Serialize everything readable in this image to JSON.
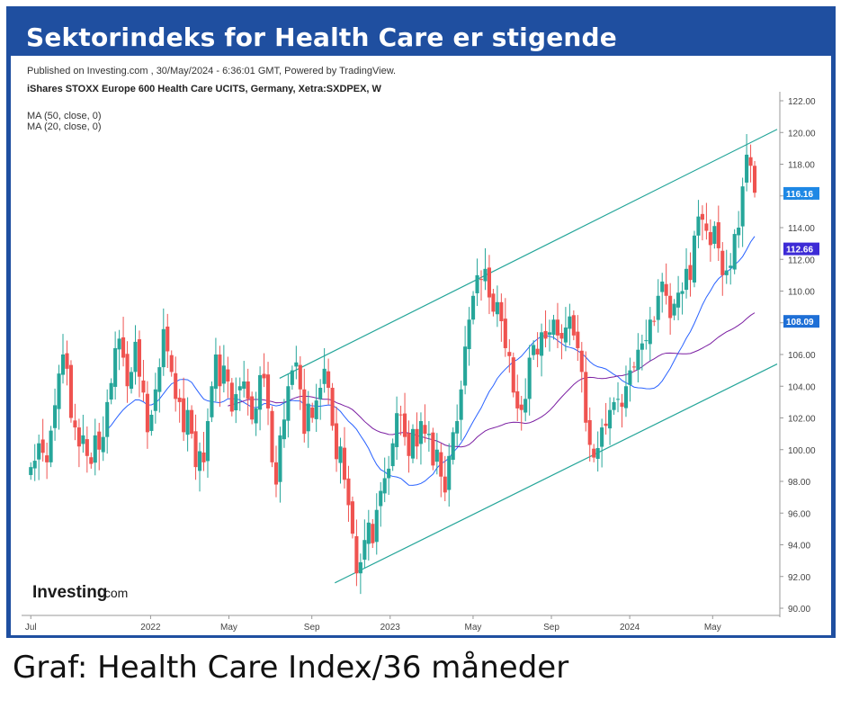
{
  "headline": "Sektorindeks for Health Care er stigende",
  "caption": "Graf: Health Care Index/36 måneder",
  "colors": {
    "frame": "#1f4fa0",
    "up": "#26a69a",
    "down": "#ef5350",
    "channel": "#26a69a",
    "ma20": "#2962ff",
    "ma50": "#7b1fa2"
  },
  "chart_data": {
    "type": "candlestick",
    "published": "Published on Investing.com , 30/May/2024 - 6:36:01 GMT, Powered by TradingView.",
    "instrument": "iShares STOXX Europe 600 Health Care UCITS, Germany, Xetra:SXDPEX, W",
    "legend": [
      "MA (50, close, 0)",
      "MA (20, close, 0)"
    ],
    "watermark": "Investing",
    "watermark_suffix": ".com",
    "y_ticks": [
      "122.00",
      "120.00",
      "118.00",
      "116.00",
      "114.00",
      "112.00",
      "110.00",
      "108.00",
      "106.00",
      "104.00",
      "102.00",
      "100.00",
      "98.00",
      "96.00",
      "94.00",
      "92.00",
      "90.00"
    ],
    "ylim": [
      90,
      122
    ],
    "x_tick_labels": [
      {
        "label": "Jul",
        "week": 0
      },
      {
        "label": "2022",
        "week": 26
      },
      {
        "label": "May",
        "week": 43
      },
      {
        "label": "Sep",
        "week": 61
      },
      {
        "label": "2023",
        "week": 78
      },
      {
        "label": "May",
        "week": 96
      },
      {
        "label": "Sep",
        "week": 113
      },
      {
        "label": "2024",
        "week": 130
      },
      {
        "label": "May",
        "week": 148
      }
    ],
    "x_range": [
      -2,
      162
    ],
    "last_price_label": "116.16",
    "ma20_label": "112.66",
    "ma50_label": "108.09",
    "channel": {
      "upper": [
        {
          "week": 54,
          "value": 104.5
        },
        {
          "week": 162,
          "value": 120.2
        }
      ],
      "lower": [
        {
          "week": 66,
          "value": 91.6
        },
        {
          "week": 162,
          "value": 105.4
        }
      ]
    },
    "ohlc_closes": [
      98.9,
      99.3,
      100.4,
      99.8,
      99.2,
      101.2,
      102.8,
      104.8,
      106.0,
      105.1,
      102.0,
      101.4,
      100.2,
      100.9,
      99.6,
      99.1,
      100.9,
      100.0,
      100.8,
      103.0,
      104.2,
      106.4,
      107.0,
      105.8,
      104.0,
      104.9,
      106.8,
      104.6,
      103.6,
      101.1,
      102.2,
      103.8,
      105.2,
      107.6,
      106.2,
      104.9,
      103.2,
      103.0,
      101.1,
      102.5,
      101.0,
      98.9,
      99.9,
      99.2,
      101.8,
      104.0,
      106.0,
      104.0,
      105.3,
      104.3,
      102.4,
      103.5,
      104.0,
      104.3,
      103.2,
      101.9,
      102.6,
      104.7,
      104.5,
      102.6,
      99.2,
      97.8,
      100.9,
      101.9,
      104.0,
      105.0,
      105.5,
      103.8,
      101.0,
      102.9,
      102.0,
      103.1,
      103.9,
      105.1,
      103.9,
      101.5,
      99.4,
      100.2,
      98.1,
      96.5,
      94.7,
      92.2,
      92.9,
      94.3,
      95.4,
      94.1,
      96.2,
      97.4,
      98.2,
      98.8,
      100.4,
      102.3,
      102.2,
      100.8,
      99.6,
      101.3,
      100.2,
      101.8,
      101.0,
      101.0,
      99.0,
      100.0,
      98.3,
      97.3,
      99.6,
      101.1,
      101.8,
      103.8,
      106.5,
      108.2,
      109.7,
      111.0,
      110.7,
      111.4,
      109.6,
      108.7,
      109.3,
      108.1,
      106.4,
      105.9,
      103.6,
      102.6,
      102.5,
      103.2,
      105.8,
      106.6,
      106.0,
      107.4,
      107.0,
      107.4,
      108.2,
      107.2,
      107.0,
      107.7,
      108.4,
      107.2,
      106.4,
      104.9,
      101.7,
      100.3,
      99.5,
      100.1,
      101.4,
      101.5,
      102.5,
      103.0,
      103.2,
      102.7,
      104.0,
      105.0,
      105.2,
      106.3,
      106.7,
      106.9,
      108.2,
      108.1,
      109.7,
      110.6,
      109.7,
      108.3,
      109.2,
      109.9,
      110.0,
      111.4,
      110.7,
      113.5,
      114.7,
      114.5,
      113.8,
      112.9,
      114.1,
      112.7,
      111.0,
      111.3,
      111.6,
      113.6,
      114.0,
      116.6,
      118.6,
      117.9,
      116.2
    ]
  }
}
